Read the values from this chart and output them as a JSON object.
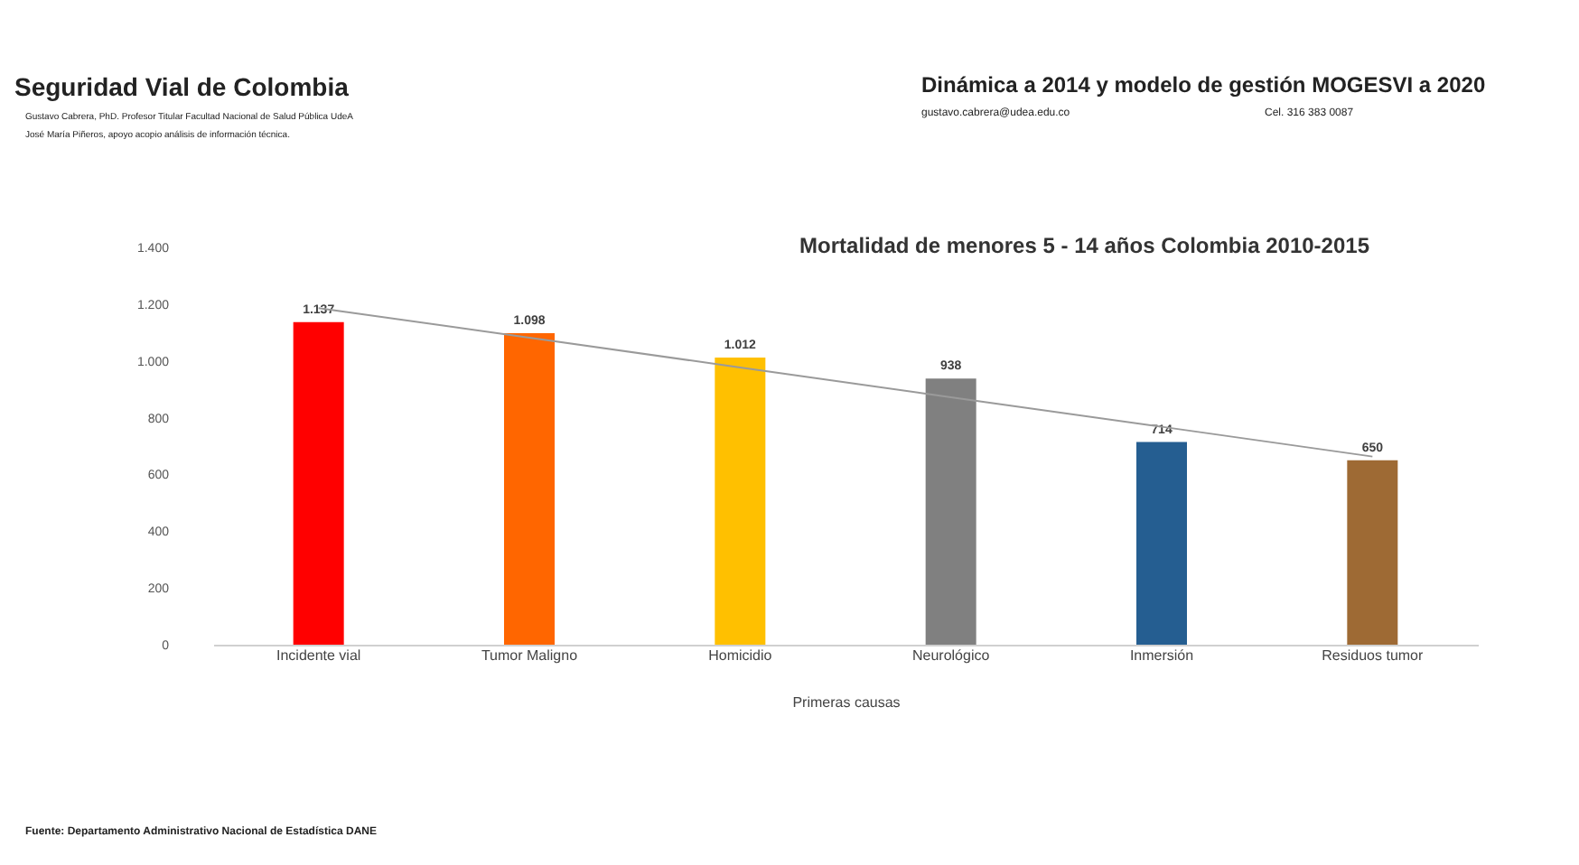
{
  "chart_data": {
    "type": "bar",
    "title": "Mortalidad de menores  5 - 14 años Colombia  2010-2015",
    "xlabel": "Primeras causas",
    "categories": [
      "Incidente vial",
      "Tumor Maligno",
      "Homicidio",
      "Neurológico",
      "Inmersión",
      "Residuos tumor"
    ],
    "series": [
      {
        "colors": [
          "#ff0000",
          "#ff6600",
          "#ffc000",
          "#808080",
          "#255e91",
          "#9e6a34"
        ],
        "values": [
          1137,
          1098,
          1012,
          938,
          714,
          650
        ],
        "value_labels": [
          "1.137",
          "1.098",
          "1.012",
          "938",
          "714",
          "650"
        ]
      },
      {
        "type": "line",
        "color": "#9a9a9a",
        "values": [
          1186,
          1082,
          977,
          872,
          768,
          663
        ]
      }
    ],
    "ylim": [
      0,
      1400
    ],
    "yticks": [
      {
        "value": 0,
        "label": "0"
      },
      {
        "value": 200,
        "label": "200"
      },
      {
        "value": 400,
        "label": "400"
      },
      {
        "value": 600,
        "label": "600"
      },
      {
        "value": 800,
        "label": "800"
      },
      {
        "value": 1000,
        "label": "1.000"
      },
      {
        "value": 1200,
        "label": "1.200"
      },
      {
        "value": 1400,
        "label": "1.400"
      }
    ],
    "grid": false,
    "annotations": [
      "Seguridad Vial de Colombia",
      "Gustavo Cabrera, PhD. Profesor Titular Facultad Nacional de Salud Pública UdeA",
      "José María Piñeros, apoyo acopio análisis de información técnica.",
      "Dinámica a 2014 y modelo de gestión MOGESVI a 2020",
      "gustavo.cabrera@udea.edu.co",
      "Cel. 316 383 0087",
      "Fuente: Departamento Administrativo Nacional de Estadística DANE"
    ]
  }
}
